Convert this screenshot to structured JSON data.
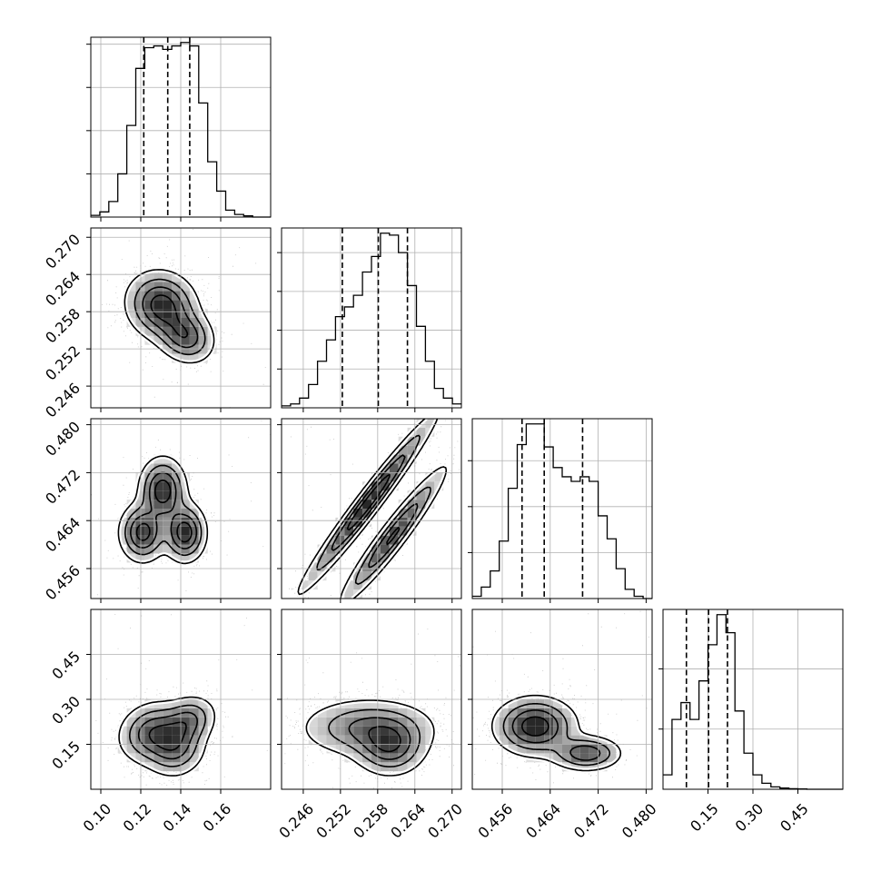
{
  "chart_data": {
    "type": "corner",
    "title": "",
    "parameters": [
      {
        "label": "",
        "range": [
          0.095,
          0.185
        ],
        "ticks": [
          "0.10",
          "0.12",
          "0.14",
          "0.16"
        ],
        "quantiles": [
          0.1215,
          0.1335,
          0.1445
        ],
        "histogram": [
          1,
          3,
          9,
          25,
          53,
          86,
          98,
          99,
          97,
          99,
          101,
          99,
          66,
          32,
          15,
          4,
          1.5,
          0.7,
          0,
          0
        ]
      },
      {
        "label": "",
        "range": [
          0.2425,
          0.2715
        ],
        "ticks": [
          "0.246",
          "0.252",
          "0.258",
          "0.264",
          "0.270"
        ],
        "quantiles": [
          0.2523,
          0.2581,
          0.2628
        ],
        "histogram": [
          1,
          2,
          5,
          12,
          24,
          35,
          47,
          52,
          58,
          70,
          78,
          90,
          89,
          80,
          63,
          42,
          24,
          10,
          5,
          2
        ]
      },
      {
        "label": "",
        "range": [
          0.451,
          0.481
        ],
        "ticks": [
          "0.456",
          "0.464",
          "0.472",
          "0.480"
        ],
        "quantiles": [
          0.4593,
          0.463,
          0.4694
        ],
        "histogram": [
          1,
          5,
          12,
          25,
          48,
          67,
          76,
          76,
          66,
          57,
          53,
          51,
          53,
          51,
          36,
          26,
          13,
          4,
          1,
          0
        ]
      },
      {
        "label": "",
        "range": [
          0.0,
          0.6
        ],
        "ticks": [
          "0.15",
          "0.30",
          "0.45"
        ],
        "quantiles": [
          0.078,
          0.152,
          0.215
        ],
        "histogram": [
          12,
          58,
          72,
          58,
          90,
          120,
          145,
          130,
          65,
          30,
          12,
          5,
          2,
          1,
          0.5,
          0.3,
          0,
          0,
          0,
          0
        ]
      }
    ],
    "pairs": [
      {
        "x": 0,
        "y": 1,
        "rotation": -0.6,
        "modes": [
          [
            0.1305,
            0.259,
            0.0085,
            0.003,
            1.0
          ],
          [
            0.1425,
            0.254,
            0.0065,
            0.0025,
            0.75
          ]
        ]
      },
      {
        "x": 0,
        "y": 2,
        "rotation": 0,
        "modes": [
          [
            0.131,
            0.469,
            0.006,
            0.0028,
            0.85
          ],
          [
            0.121,
            0.462,
            0.006,
            0.0025,
            0.8
          ],
          [
            0.142,
            0.462,
            0.0055,
            0.0025,
            0.85
          ]
        ]
      },
      {
        "x": 1,
        "y": 2,
        "rotation": 0.92,
        "modes": [
          [
            0.2565,
            0.467,
            0.009,
            0.001,
            1.0
          ],
          [
            0.2605,
            0.4615,
            0.007,
            0.0011,
            0.85
          ]
        ]
      },
      {
        "x": 0,
        "y": 3,
        "rotation": 0.5,
        "modes": [
          [
            0.1255,
            0.19,
            0.009,
            0.05,
            0.85
          ],
          [
            0.137,
            0.14,
            0.008,
            0.05,
            0.8
          ],
          [
            0.144,
            0.23,
            0.006,
            0.05,
            0.7
          ]
        ]
      },
      {
        "x": 1,
        "y": 3,
        "rotation": 0,
        "modes": [
          [
            0.2565,
            0.205,
            0.0055,
            0.05,
            0.85
          ],
          [
            0.26,
            0.14,
            0.003,
            0.05,
            0.95
          ]
        ]
      },
      {
        "x": 2,
        "y": 3,
        "rotation": 0,
        "modes": [
          [
            0.4615,
            0.21,
            0.0035,
            0.05,
            1.0
          ],
          [
            0.47,
            0.12,
            0.003,
            0.03,
            0.75
          ]
        ]
      }
    ],
    "levels": [
      0.12,
      0.32,
      0.56,
      0.82
    ],
    "grid": true,
    "legend": "none",
    "colors": {
      "ink": "#000000",
      "grid": "#b0b0b0",
      "frame": "#000000",
      "background": "#ffffff"
    }
  }
}
